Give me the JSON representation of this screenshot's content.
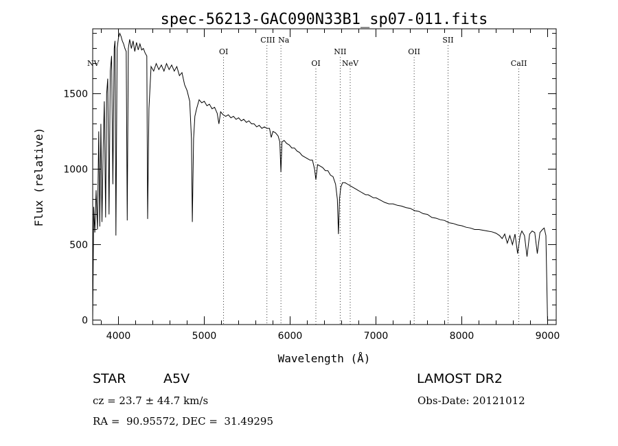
{
  "chart_data": {
    "type": "line",
    "title": "spec-56213-GAC090N33B1_sp07-011.fits",
    "xlabel": "Wavelength (Å)",
    "ylabel": "Flux (relative)",
    "xlim": [
      3700,
      9100
    ],
    "ylim": [
      -30,
      1930
    ],
    "xticks": [
      4000,
      5000,
      6000,
      7000,
      8000,
      9000
    ],
    "yticks": [
      0,
      500,
      1000,
      1500
    ],
    "grid": false,
    "spectral_lines": [
      {
        "label": "NV",
        "wavelength": 3700,
        "tier": 3
      },
      {
        "label": "OI",
        "wavelength": 5225,
        "tier": 2
      },
      {
        "label": "CIII",
        "wavelength": 5730,
        "tier": 1
      },
      {
        "label": "Na",
        "wavelength": 5893,
        "tier": 1
      },
      {
        "label": "OI",
        "wavelength": 6300,
        "tier": 3
      },
      {
        "label": "NII",
        "wavelength": 6583,
        "tier": 2
      },
      {
        "label": "NeV",
        "wavelength": 6700,
        "tier": 3
      },
      {
        "label": "OII",
        "wavelength": 7445,
        "tier": 2
      },
      {
        "label": "SII",
        "wavelength": 7840,
        "tier": 1
      },
      {
        "label": "CaII",
        "wavelength": 8665,
        "tier": 3
      }
    ],
    "series": [
      {
        "name": "",
        "points": [
          [
            3700,
            0
          ],
          [
            3712,
            750
          ],
          [
            3725,
            580
          ],
          [
            3740,
            860
          ],
          [
            3755,
            600
          ],
          [
            3770,
            1250
          ],
          [
            3782,
            620
          ],
          [
            3795,
            1300
          ],
          [
            3808,
            650
          ],
          [
            3822,
            1150
          ],
          [
            3835,
            1450
          ],
          [
            3850,
            680
          ],
          [
            3862,
            1500
          ],
          [
            3875,
            1600
          ],
          [
            3890,
            700
          ],
          [
            3905,
            1650
          ],
          [
            3920,
            1750
          ],
          [
            3935,
            900
          ],
          [
            3950,
            1800
          ],
          [
            3960,
            1850
          ],
          [
            3970,
            560
          ],
          [
            3985,
            1800
          ],
          [
            4000,
            1870
          ],
          [
            4015,
            1900
          ],
          [
            4030,
            1880
          ],
          [
            4045,
            1850
          ],
          [
            4060,
            1830
          ],
          [
            4075,
            1800
          ],
          [
            4090,
            1780
          ],
          [
            4102,
            660
          ],
          [
            4115,
            1800
          ],
          [
            4130,
            1860
          ],
          [
            4150,
            1800
          ],
          [
            4170,
            1850
          ],
          [
            4190,
            1780
          ],
          [
            4210,
            1840
          ],
          [
            4230,
            1790
          ],
          [
            4250,
            1830
          ],
          [
            4270,
            1790
          ],
          [
            4290,
            1800
          ],
          [
            4310,
            1770
          ],
          [
            4330,
            1750
          ],
          [
            4340,
            670
          ],
          [
            4355,
            1400
          ],
          [
            4380,
            1680
          ],
          [
            4410,
            1650
          ],
          [
            4440,
            1700
          ],
          [
            4470,
            1660
          ],
          [
            4500,
            1690
          ],
          [
            4530,
            1650
          ],
          [
            4560,
            1700
          ],
          [
            4590,
            1660
          ],
          [
            4620,
            1690
          ],
          [
            4650,
            1650
          ],
          [
            4680,
            1680
          ],
          [
            4710,
            1620
          ],
          [
            4740,
            1640
          ],
          [
            4770,
            1560
          ],
          [
            4800,
            1520
          ],
          [
            4830,
            1450
          ],
          [
            4850,
            1200
          ],
          [
            4861,
            650
          ],
          [
            4875,
            1200
          ],
          [
            4890,
            1350
          ],
          [
            4910,
            1400
          ],
          [
            4940,
            1460
          ],
          [
            4970,
            1440
          ],
          [
            5000,
            1450
          ],
          [
            5030,
            1420
          ],
          [
            5060,
            1430
          ],
          [
            5090,
            1400
          ],
          [
            5120,
            1410
          ],
          [
            5150,
            1370
          ],
          [
            5170,
            1300
          ],
          [
            5190,
            1380
          ],
          [
            5220,
            1360
          ],
          [
            5250,
            1350
          ],
          [
            5280,
            1360
          ],
          [
            5310,
            1340
          ],
          [
            5340,
            1350
          ],
          [
            5370,
            1330
          ],
          [
            5400,
            1340
          ],
          [
            5430,
            1320
          ],
          [
            5460,
            1330
          ],
          [
            5490,
            1310
          ],
          [
            5520,
            1320
          ],
          [
            5550,
            1300
          ],
          [
            5580,
            1300
          ],
          [
            5610,
            1280
          ],
          [
            5640,
            1290
          ],
          [
            5670,
            1270
          ],
          [
            5700,
            1280
          ],
          [
            5730,
            1270
          ],
          [
            5760,
            1270
          ],
          [
            5780,
            1210
          ],
          [
            5800,
            1250
          ],
          [
            5830,
            1240
          ],
          [
            5860,
            1220
          ],
          [
            5880,
            1180
          ],
          [
            5893,
            980
          ],
          [
            5905,
            1180
          ],
          [
            5930,
            1190
          ],
          [
            5960,
            1170
          ],
          [
            5990,
            1160
          ],
          [
            6020,
            1140
          ],
          [
            6050,
            1140
          ],
          [
            6080,
            1120
          ],
          [
            6110,
            1110
          ],
          [
            6140,
            1090
          ],
          [
            6170,
            1080
          ],
          [
            6200,
            1070
          ],
          [
            6230,
            1060
          ],
          [
            6260,
            1060
          ],
          [
            6285,
            1000
          ],
          [
            6300,
            930
          ],
          [
            6320,
            1030
          ],
          [
            6350,
            1020
          ],
          [
            6380,
            1010
          ],
          [
            6410,
            990
          ],
          [
            6440,
            990
          ],
          [
            6470,
            960
          ],
          [
            6500,
            950
          ],
          [
            6530,
            900
          ],
          [
            6550,
            800
          ],
          [
            6563,
            570
          ],
          [
            6575,
            800
          ],
          [
            6590,
            880
          ],
          [
            6610,
            910
          ],
          [
            6640,
            910
          ],
          [
            6670,
            900
          ],
          [
            6700,
            890
          ],
          [
            6730,
            880
          ],
          [
            6760,
            870
          ],
          [
            6790,
            860
          ],
          [
            6820,
            850
          ],
          [
            6850,
            840
          ],
          [
            6880,
            830
          ],
          [
            6910,
            830
          ],
          [
            6940,
            820
          ],
          [
            6970,
            810
          ],
          [
            7000,
            810
          ],
          [
            7050,
            795
          ],
          [
            7100,
            780
          ],
          [
            7150,
            770
          ],
          [
            7200,
            770
          ],
          [
            7250,
            760
          ],
          [
            7300,
            755
          ],
          [
            7350,
            745
          ],
          [
            7400,
            740
          ],
          [
            7450,
            725
          ],
          [
            7500,
            720
          ],
          [
            7550,
            705
          ],
          [
            7600,
            700
          ],
          [
            7650,
            680
          ],
          [
            7700,
            675
          ],
          [
            7750,
            665
          ],
          [
            7800,
            660
          ],
          [
            7850,
            645
          ],
          [
            7900,
            640
          ],
          [
            7950,
            630
          ],
          [
            8000,
            625
          ],
          [
            8050,
            615
          ],
          [
            8100,
            610
          ],
          [
            8150,
            600
          ],
          [
            8200,
            600
          ],
          [
            8250,
            595
          ],
          [
            8300,
            590
          ],
          [
            8350,
            585
          ],
          [
            8400,
            575
          ],
          [
            8440,
            560
          ],
          [
            8470,
            540
          ],
          [
            8500,
            570
          ],
          [
            8530,
            510
          ],
          [
            8560,
            560
          ],
          [
            8590,
            500
          ],
          [
            8620,
            570
          ],
          [
            8650,
            440
          ],
          [
            8680,
            560
          ],
          [
            8700,
            590
          ],
          [
            8730,
            560
          ],
          [
            8760,
            420
          ],
          [
            8790,
            570
          ],
          [
            8820,
            590
          ],
          [
            8850,
            580
          ],
          [
            8880,
            440
          ],
          [
            8910,
            580
          ],
          [
            8940,
            600
          ],
          [
            8960,
            610
          ],
          [
            8980,
            560
          ],
          [
            9000,
            -30
          ]
        ]
      }
    ]
  },
  "info": {
    "object_class": "STAR",
    "subclass": "A5V",
    "survey": "LAMOST DR2",
    "cz": "cz = 23.7 ± 44.7 km/s",
    "obs_date": "Obs-Date: 20121012",
    "radec": "RA =  90.95572, DEC =  31.49295"
  }
}
